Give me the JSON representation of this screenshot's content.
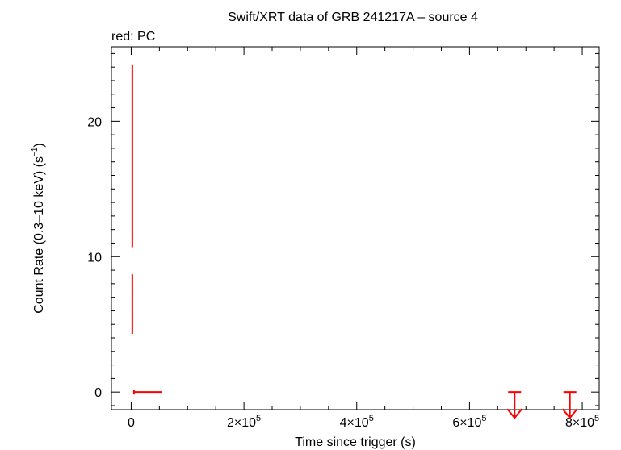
{
  "chart_data": {
    "type": "scatter",
    "title": "Swift/XRT data of GRB 241217A – source 4",
    "subtitle": "red: PC",
    "xlabel": "Time since trigger (s)",
    "ylabel": "Count Rate (0.3–10 keV) (s",
    "ylabel_sup": "−1",
    "ylabel_end": ")",
    "xlim": [
      -35000,
      830000
    ],
    "ylim": [
      -1.3,
      25.5
    ],
    "x_ticks": [
      {
        "value": 0,
        "mant": "0",
        "exp": ""
      },
      {
        "value": 200000,
        "mant": "2×10",
        "exp": "5"
      },
      {
        "value": 400000,
        "mant": "4×10",
        "exp": "5"
      },
      {
        "value": 600000,
        "mant": "6×10",
        "exp": "5"
      },
      {
        "value": 800000,
        "mant": "8×10",
        "exp": "5"
      }
    ],
    "y_ticks": [
      0,
      10,
      20
    ],
    "series": [
      {
        "color": "#ff0000",
        "points": [
          {
            "x": 2000,
            "y": 17.4,
            "ylo": 10.7,
            "yhi": 24.2
          },
          {
            "x": 2000,
            "y": 6.5,
            "ylo": 4.3,
            "yhi": 8.7
          },
          {
            "x": 30000,
            "y": 0.0,
            "xlo": 5000,
            "xhi": 55000
          }
        ],
        "upper_limits": [
          {
            "x": 680000,
            "y": 0.0
          },
          {
            "x": 778000,
            "y": 0.0
          }
        ]
      }
    ]
  }
}
